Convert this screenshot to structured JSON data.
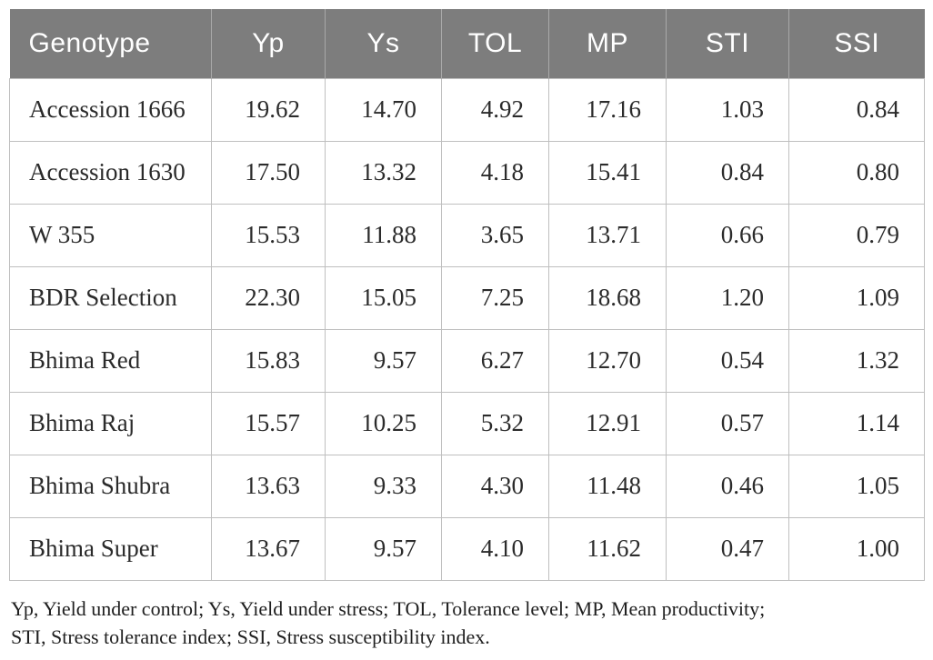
{
  "table": {
    "columns": [
      "Genotype",
      "Yp",
      "Ys",
      "TOL",
      "MP",
      "STI",
      "SSI"
    ],
    "rows": [
      [
        "Accession 1666",
        "19.62",
        "14.70",
        "4.92",
        "17.16",
        "1.03",
        "0.84"
      ],
      [
        "Accession 1630",
        "17.50",
        "13.32",
        "4.18",
        "15.41",
        "0.84",
        "0.80"
      ],
      [
        "W 355",
        "15.53",
        "11.88",
        "3.65",
        "13.71",
        "0.66",
        "0.79"
      ],
      [
        "BDR Selection",
        "22.30",
        "15.05",
        "7.25",
        "18.68",
        "1.20",
        "1.09"
      ],
      [
        "Bhima Red",
        "15.83",
        "9.57",
        "6.27",
        "12.70",
        "0.54",
        "1.32"
      ],
      [
        "Bhima Raj",
        "15.57",
        "10.25",
        "5.32",
        "12.91",
        "0.57",
        "1.14"
      ],
      [
        "Bhima Shubra",
        "13.63",
        "9.33",
        "4.30",
        "11.48",
        "0.46",
        "1.05"
      ],
      [
        "Bhima Super",
        "13.67",
        "9.57",
        "4.10",
        "11.62",
        "0.47",
        "1.00"
      ]
    ]
  },
  "footnote": {
    "line1": "Yp, Yield under control; Ys, Yield under stress; TOL, Tolerance level; MP, Mean productivity;",
    "line2": "STI, Stress tolerance index; SSI, Stress susceptibility index."
  },
  "colors": {
    "header_background": "#7d7d7d",
    "header_text": "#ffffff",
    "body_border": "#bfbfbf",
    "body_text": "#2b2b2b"
  },
  "chart_data": {
    "type": "table",
    "title": "",
    "columns": [
      "Genotype",
      "Yp",
      "Ys",
      "TOL",
      "MP",
      "STI",
      "SSI"
    ],
    "rows": [
      {
        "Genotype": "Accession 1666",
        "Yp": 19.62,
        "Ys": 14.7,
        "TOL": 4.92,
        "MP": 17.16,
        "STI": 1.03,
        "SSI": 0.84
      },
      {
        "Genotype": "Accession 1630",
        "Yp": 17.5,
        "Ys": 13.32,
        "TOL": 4.18,
        "MP": 15.41,
        "STI": 0.84,
        "SSI": 0.8
      },
      {
        "Genotype": "W 355",
        "Yp": 15.53,
        "Ys": 11.88,
        "TOL": 3.65,
        "MP": 13.71,
        "STI": 0.66,
        "SSI": 0.79
      },
      {
        "Genotype": "BDR Selection",
        "Yp": 22.3,
        "Ys": 15.05,
        "TOL": 7.25,
        "MP": 18.68,
        "STI": 1.2,
        "SSI": 1.09
      },
      {
        "Genotype": "Bhima Red",
        "Yp": 15.83,
        "Ys": 9.57,
        "TOL": 6.27,
        "MP": 12.7,
        "STI": 0.54,
        "SSI": 1.32
      },
      {
        "Genotype": "Bhima Raj",
        "Yp": 15.57,
        "Ys": 10.25,
        "TOL": 5.32,
        "MP": 12.91,
        "STI": 0.57,
        "SSI": 1.14
      },
      {
        "Genotype": "Bhima Shubra",
        "Yp": 13.63,
        "Ys": 9.33,
        "TOL": 4.3,
        "MP": 11.48,
        "STI": 0.46,
        "SSI": 1.05
      },
      {
        "Genotype": "Bhima Super",
        "Yp": 13.67,
        "Ys": 9.57,
        "TOL": 4.1,
        "MP": 11.62,
        "STI": 0.47,
        "SSI": 1.0
      }
    ]
  }
}
